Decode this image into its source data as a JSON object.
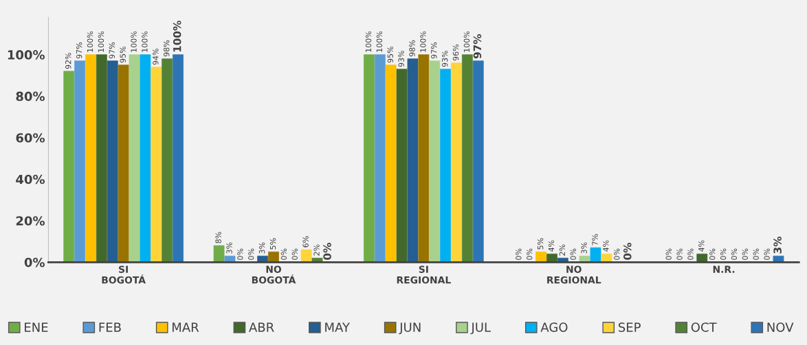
{
  "chart_data": {
    "type": "bar",
    "categories": [
      "SI\nBOGOTÁ",
      "NO\nBOGOTÁ",
      "SI\nREGIONAL",
      "NO\nREGIONAL",
      "N.R."
    ],
    "ylim": [
      0,
      118
    ],
    "yticks": [
      {
        "value": 0,
        "label": "0%"
      },
      {
        "value": 20,
        "label": "20%"
      },
      {
        "value": 40,
        "label": "40%"
      },
      {
        "value": 60,
        "label": "60%"
      },
      {
        "value": 80,
        "label": "80%"
      },
      {
        "value": 100,
        "label": "100%"
      }
    ],
    "grid": false,
    "legend": "bottom",
    "series": [
      {
        "name": "ENE",
        "color": "#70ad47",
        "values": [
          92,
          8,
          100,
          0,
          0
        ],
        "value_labels": [
          "92%",
          "8%",
          "100%",
          "0%",
          "0%"
        ]
      },
      {
        "name": "FEB",
        "color": "#5b9bd5",
        "values": [
          97,
          3,
          100,
          0,
          0
        ],
        "value_labels": [
          "97%",
          "3%",
          "100%",
          "0%",
          "0%"
        ]
      },
      {
        "name": "MAR",
        "color": "#ffc000",
        "values": [
          100,
          0,
          95,
          5,
          0
        ],
        "value_labels": [
          "100%",
          "0%",
          "95%",
          "5%",
          "0%"
        ]
      },
      {
        "name": "ABR",
        "color": "#43682b",
        "values": [
          100,
          0,
          93,
          4,
          4
        ],
        "value_labels": [
          "100%",
          "0%",
          "93%",
          "4%",
          "4%"
        ]
      },
      {
        "name": "MAY",
        "color": "#255e91",
        "values": [
          97,
          3,
          98,
          2,
          0
        ],
        "value_labels": [
          "97%",
          "3%",
          "98%",
          "2%",
          "0%"
        ]
      },
      {
        "name": "JUN",
        "color": "#997300",
        "values": [
          95,
          5,
          100,
          0,
          0
        ],
        "value_labels": [
          "95%",
          "5%",
          "100%",
          "0%",
          "0%"
        ]
      },
      {
        "name": "JUL",
        "color": "#a9d18e",
        "values": [
          100,
          0,
          97,
          3,
          0
        ],
        "value_labels": [
          "100%",
          "0%",
          "97%",
          "3%",
          "0%"
        ]
      },
      {
        "name": "AGO",
        "color": "#00b0f0",
        "values": [
          100,
          0,
          93,
          7,
          0
        ],
        "value_labels": [
          "100%",
          "0%",
          "93%",
          "7%",
          "0%"
        ]
      },
      {
        "name": "SEP",
        "color": "#ffd43a",
        "values": [
          94,
          6,
          96,
          4,
          0
        ],
        "value_labels": [
          "94%",
          "6%",
          "96%",
          "4%",
          "0%"
        ]
      },
      {
        "name": "OCT",
        "color": "#548235",
        "values": [
          98,
          2,
          100,
          0,
          0
        ],
        "value_labels": [
          "98%",
          "2%",
          "100%",
          "0%",
          "0%"
        ]
      },
      {
        "name": "NOV",
        "color": "#2e75b6",
        "values": [
          100,
          0,
          97,
          0,
          3
        ],
        "value_labels": [
          "100%",
          "0%",
          "97%",
          "0%",
          "3%"
        ]
      }
    ]
  }
}
